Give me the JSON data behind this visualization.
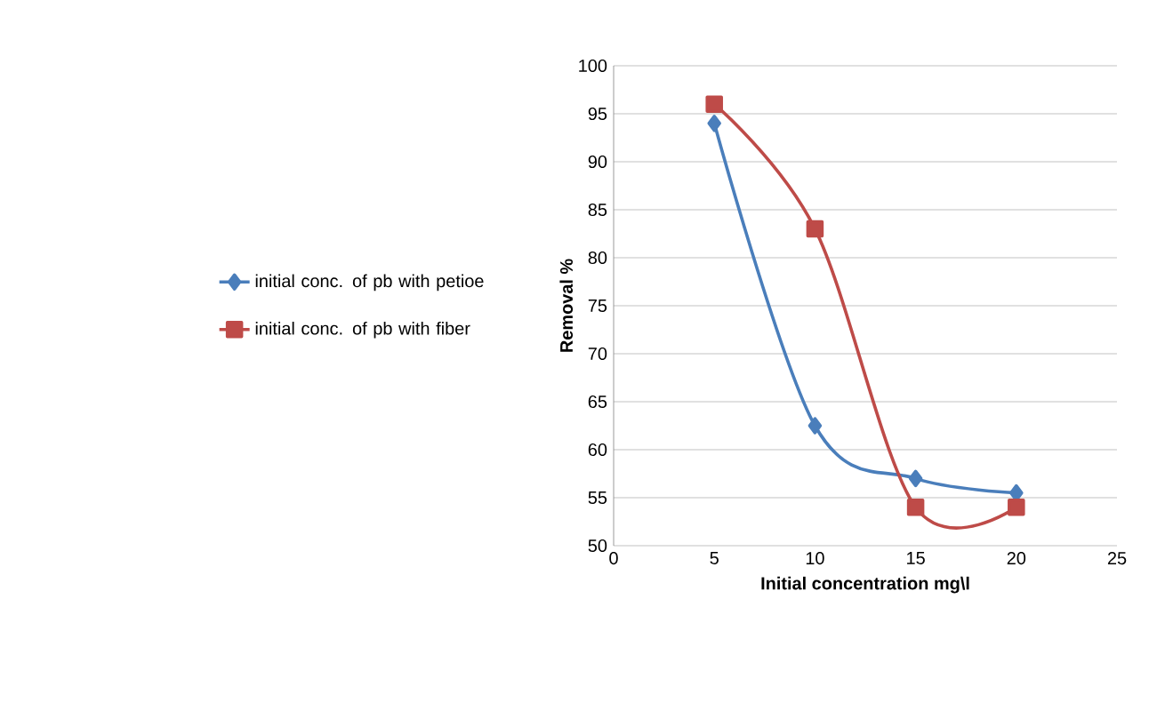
{
  "chart_data": {
    "type": "line",
    "xlabel": "Initial concentration mg\\l",
    "ylabel": "Removal %",
    "xlim": [
      0,
      25
    ],
    "xticks": [
      0,
      5,
      10,
      15,
      20,
      25
    ],
    "ylim": [
      50,
      100
    ],
    "yticks": [
      50,
      55,
      60,
      65,
      70,
      75,
      80,
      85,
      90,
      95,
      100
    ],
    "grid": "y",
    "legend": "left",
    "x": [
      5,
      10,
      15,
      20
    ],
    "series": [
      {
        "name": "initial conc. of pb with petioe",
        "color": "#4a7ebb",
        "marker": "diamond",
        "values": [
          94,
          62.5,
          57,
          55.5
        ]
      },
      {
        "name": "initial conc. of pb with fiber",
        "color": "#be4b48",
        "marker": "square",
        "values": [
          96,
          83,
          54,
          54
        ]
      }
    ]
  }
}
